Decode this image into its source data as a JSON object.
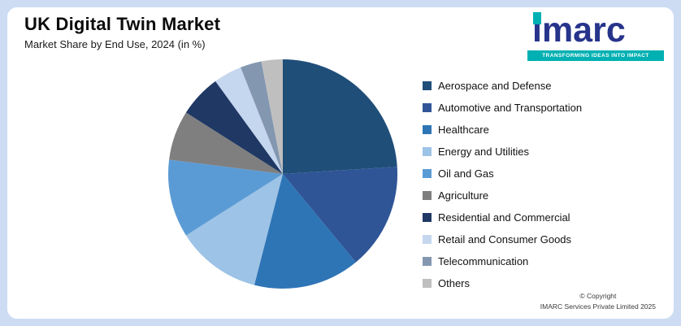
{
  "header": {
    "title": "UK Digital Twin Market",
    "subtitle": "Market Share by End Use, 2024 (in %)"
  },
  "logo": {
    "brand": "imarc",
    "tagline": "TRANSFORMING IDEAS INTO IMPACT",
    "brand_color": "#27348b",
    "accent_color": "#00b0b2"
  },
  "footer": {
    "line1": "© Copyright",
    "line2": "IMARC Services Private Limited 2025"
  },
  "chart_data": {
    "type": "pie",
    "title": "UK Digital Twin Market",
    "subtitle": "Market Share by End Use, 2024 (in %)",
    "legend_position": "right",
    "start_angle": "top",
    "direction": "clockwise",
    "values_are_percent": true,
    "segments": [
      {
        "label": "Aerospace and Defense",
        "value": 24,
        "color": "#1F4E79"
      },
      {
        "label": "Automotive and Transportation",
        "value": 15,
        "color": "#2F5597"
      },
      {
        "label": "Healthcare",
        "value": 15,
        "color": "#2E75B6"
      },
      {
        "label": "Energy and Utilities",
        "value": 12,
        "color": "#9DC3E6"
      },
      {
        "label": "Oil and Gas",
        "value": 11,
        "color": "#5B9BD5"
      },
      {
        "label": "Agriculture",
        "value": 7,
        "color": "#7F7F7F"
      },
      {
        "label": "Residential and Commercial",
        "value": 6,
        "color": "#1F3864"
      },
      {
        "label": "Retail and Consumer Goods",
        "value": 4,
        "color": "#C5D6EF"
      },
      {
        "label": "Telecommunication",
        "value": 3,
        "color": "#8497B0"
      },
      {
        "label": "Others",
        "value": 3,
        "color": "#BFBFBF"
      }
    ]
  }
}
